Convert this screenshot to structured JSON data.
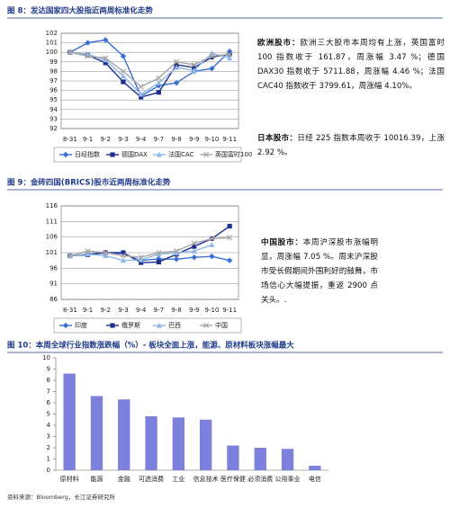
{
  "chart_data": [
    {
      "type": "line",
      "title": "图 8：发达国家四大股指近两周标准化走势",
      "categories": [
        "8-31",
        "9-1",
        "9-2",
        "9-3",
        "9-4",
        "9-7",
        "9-8",
        "9-9",
        "9-10",
        "9-11"
      ],
      "ylim": [
        92,
        102
      ],
      "yticks": [
        92,
        93,
        94,
        95,
        96,
        97,
        98,
        99,
        100,
        101,
        102
      ],
      "series": [
        {
          "name": "日经指数",
          "color": "#3a6fd8",
          "marker": "diamond",
          "values": [
            100,
            101,
            101.3,
            99.6,
            95.4,
            96.5,
            96.8,
            98,
            98.3,
            100.1
          ]
        },
        {
          "name": "德国DAX",
          "color": "#1c2f8f",
          "marker": "square",
          "values": [
            100,
            99.7,
            98.9,
            96.9,
            95.3,
            95.8,
            98.7,
            98.4,
            99.5,
            99.8
          ]
        },
        {
          "name": "法国CAC",
          "color": "#8fb8e8",
          "marker": "triangle",
          "values": [
            100,
            99.8,
            99.2,
            97.5,
            95.6,
            96.8,
            98.4,
            98.1,
            99.9,
            99.4
          ]
        },
        {
          "name": "英国富时100",
          "color": "#a8a8a8",
          "marker": "x",
          "values": [
            100,
            99.6,
            99.4,
            98,
            96.4,
            97.3,
            99,
            98.7,
            99.6,
            99.8
          ]
        }
      ]
    },
    {
      "type": "line",
      "title": "图 9：金砖四国(BRICS)股市近两周标准化走势",
      "categories": [
        "8-31",
        "9-1",
        "9-2",
        "9-3",
        "9-4",
        "9-7",
        "9-8",
        "9-9",
        "9-10",
        "9-11"
      ],
      "ylim": [
        86,
        116
      ],
      "yticks": [
        86,
        91,
        96,
        101,
        106,
        111,
        116
      ],
      "series": [
        {
          "name": "印度",
          "color": "#3a6fd8",
          "marker": "diamond",
          "values": [
            100,
            100.5,
            101,
            100.6,
            98.5,
            99,
            98.9,
            99.5,
            99.8,
            98.5
          ]
        },
        {
          "name": "俄罗斯",
          "color": "#1c2f8f",
          "marker": "square",
          "values": [
            100,
            100.3,
            101,
            101,
            97.8,
            98,
            100.5,
            103,
            105.5,
            109.5
          ]
        },
        {
          "name": "巴西",
          "color": "#8fb8e8",
          "marker": "triangle",
          "values": [
            100,
            100.5,
            100,
            98.5,
            98.7,
            100.5,
            100.9,
            101.5,
            103.5,
            null
          ]
        },
        {
          "name": "中国",
          "color": "#a8a8a8",
          "marker": "x",
          "values": [
            100,
            101.5,
            101,
            100,
            99.5,
            101,
            101.5,
            104,
            105.5,
            105.8
          ]
        }
      ]
    },
    {
      "type": "bar",
      "title": "图 10：本周全球行业指数涨跌幅（%）- 板块全面上涨，能源、原材料板块涨幅最大",
      "categories": [
        "原材料",
        "能源",
        "金融",
        "可选消费",
        "工业",
        "信息技术",
        "医疗保健",
        "必须消费",
        "公用事业",
        "电信"
      ],
      "values": [
        8.6,
        6.6,
        6.3,
        4.8,
        4.7,
        4.5,
        2.2,
        2.0,
        1.9,
        0.4
      ],
      "color": "#7d80dc",
      "ylim": [
        0,
        10
      ],
      "yticks": [
        0,
        1,
        2,
        3,
        4,
        5,
        6,
        7,
        8,
        9,
        10
      ]
    }
  ],
  "notes": [
    {
      "label": "欧洲股市：",
      "text": "欧洲三大股市本周均有上涨，英国富时 100 指数收于 161.87，周涨幅 3.47 %；德国 DAX30 指数收于 5711.88，周涨幅 4.46 %；法国 CAC40 指数收于 3799.61，周涨幅 4.10%。"
    },
    {
      "label": "日本股市：",
      "text": "日经 225 指数本周收于 10016.39，上涨 2.92 %。"
    },
    {
      "label": "中国股市：",
      "text": "本周沪深股市涨幅明显，周涨幅 7.05 %。周末沪深股市受长假期间外围利好的鼓舞，市场信心大幅提振，重返 2900 点关头。."
    }
  ],
  "source": "资料来源：Bloomberg，长江证券研究所"
}
